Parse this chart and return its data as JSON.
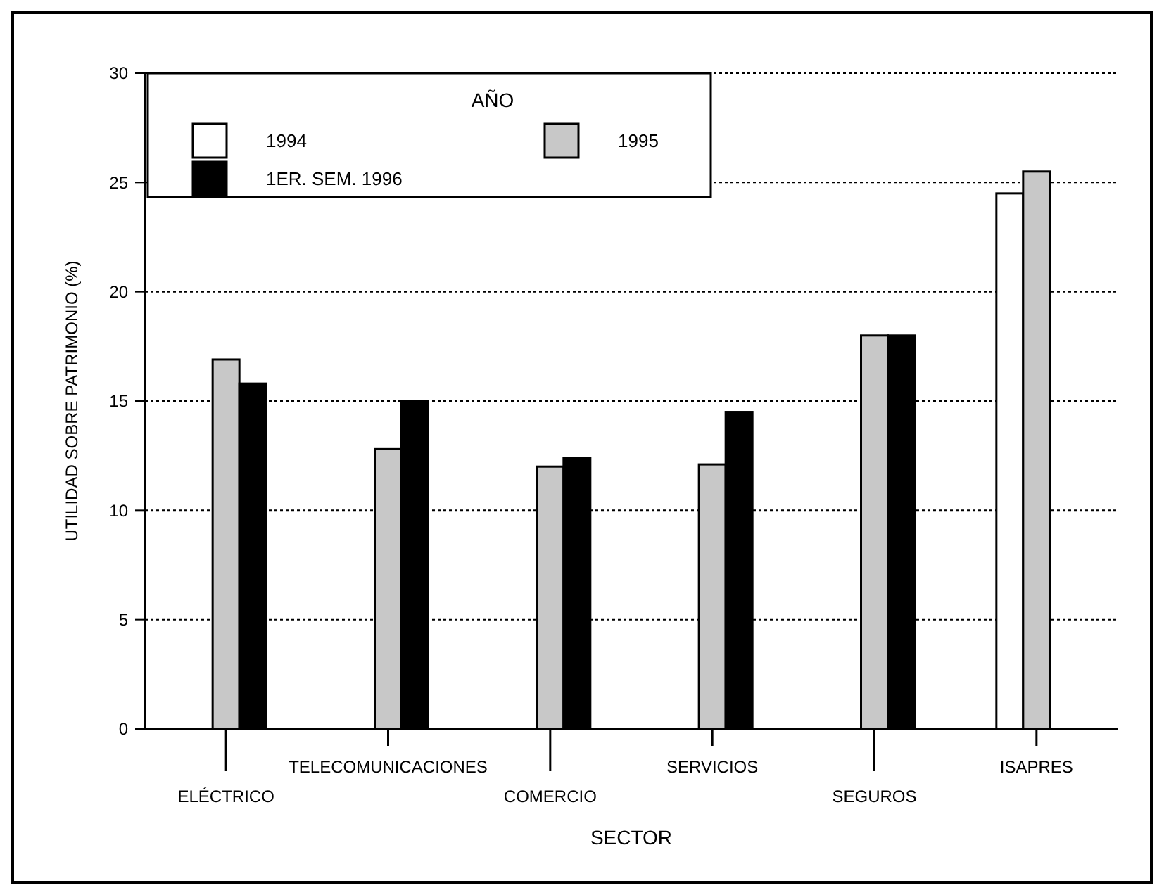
{
  "chart_data": {
    "type": "bar",
    "xlabel": "SECTOR",
    "ylabel": "UTILIDAD SOBRE PATRIMONIO (%)",
    "legend_title": "AÑO",
    "categories": [
      "ELÉCTRICO",
      "TELECOMUNICACIONES",
      "COMERCIO",
      "SERVICIOS",
      "SEGUROS",
      "ISAPRES"
    ],
    "series": [
      {
        "name": "1994",
        "color": "#ffffff",
        "values": [
          null,
          null,
          null,
          null,
          null,
          24.5
        ]
      },
      {
        "name": "1995",
        "color": "#c8c8c8",
        "values": [
          16.9,
          12.8,
          12.0,
          12.1,
          18.0,
          25.5
        ]
      },
      {
        "name": "1ER. SEM. 1996",
        "color": "#000000",
        "values": [
          15.8,
          15.0,
          12.4,
          14.5,
          18.0,
          null
        ]
      }
    ],
    "ylim": [
      0,
      30
    ],
    "yticks": [
      0,
      5,
      10,
      15,
      20,
      25,
      30
    ],
    "grid": "y",
    "legend": "top left"
  }
}
